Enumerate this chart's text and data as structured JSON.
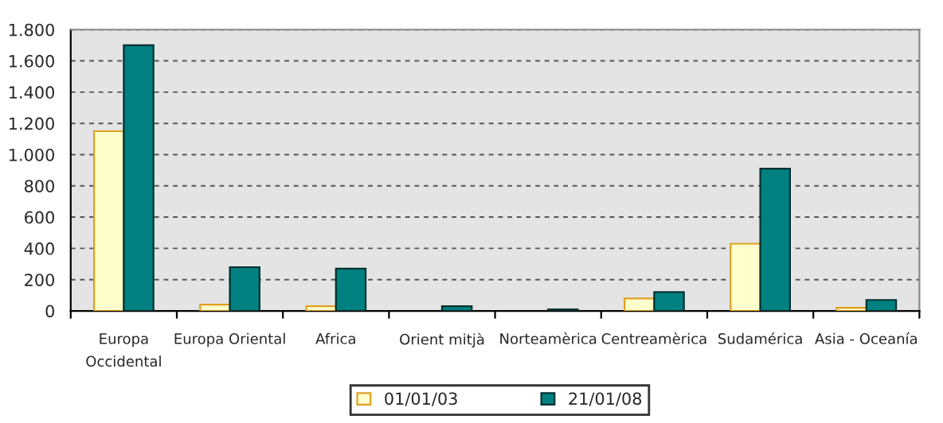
{
  "chart_data": {
    "type": "bar",
    "categories": [
      "Europa\nOccidental",
      "Europa Oriental",
      "Africa",
      "Orient mitjà",
      "Norteamèrica",
      "Centreamèrica",
      "Sudamérica",
      "Asia - Oceanía"
    ],
    "series": [
      {
        "name": "01/01/03",
        "color": "#ffffcc",
        "values": [
          1150,
          40,
          30,
          null,
          null,
          80,
          430,
          20
        ]
      },
      {
        "name": "21/01/08",
        "color": "#008080",
        "values": [
          1700,
          280,
          270,
          30,
          10,
          120,
          910,
          70
        ]
      }
    ],
    "ylim": [
      0,
      1800
    ],
    "yticks": [
      0,
      200,
      400,
      600,
      800,
      {
        "value": 1000,
        "label": "1.000"
      },
      {
        "value": 1200,
        "label": "1.200"
      },
      {
        "value": 1400,
        "label": "1.400"
      },
      {
        "value": 1600,
        "label": "1.600"
      },
      {
        "value": 1800,
        "label": "1.800"
      }
    ],
    "grid": "y",
    "legend": "bottom"
  }
}
